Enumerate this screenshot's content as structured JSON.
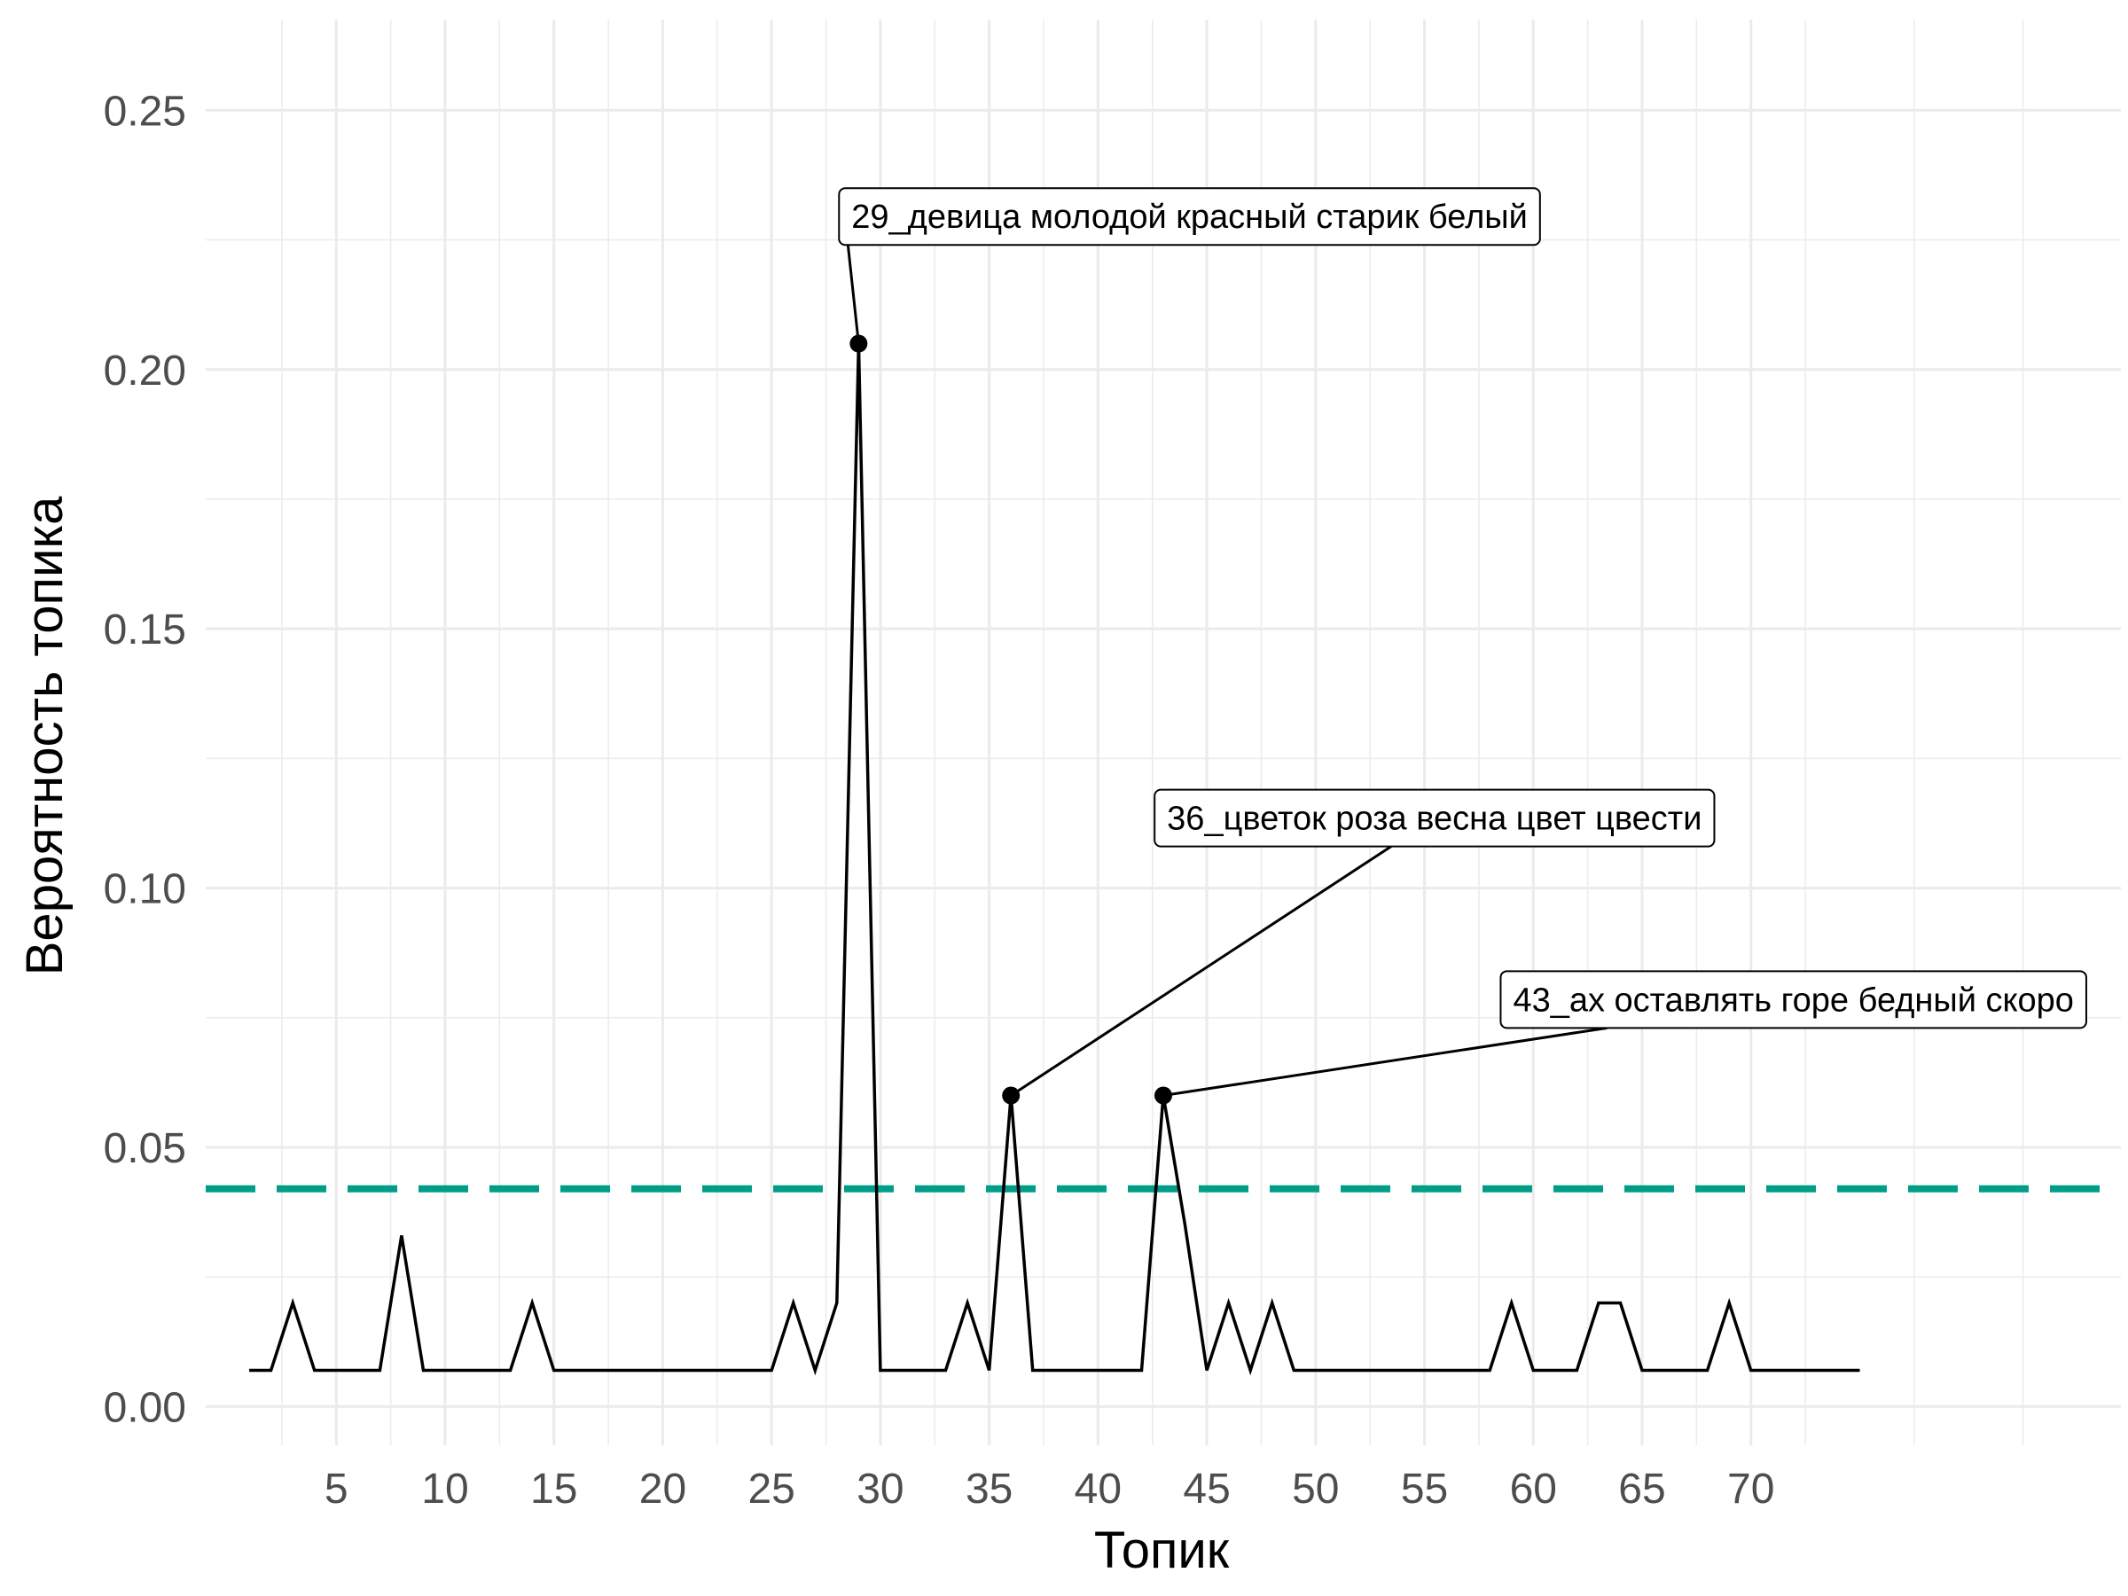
{
  "chart_data": {
    "type": "line",
    "xlabel": "Топик",
    "ylabel": "Вероятность топика",
    "xlim": [
      -1,
      87
    ],
    "ylim": [
      -0.00745,
      0.2675
    ],
    "x_ticks": [
      5,
      10,
      15,
      20,
      25,
      30,
      35,
      40,
      45,
      50,
      55,
      60,
      65,
      70
    ],
    "x_tick_labels": [
      "5",
      "10",
      "15",
      "20",
      "25",
      "30",
      "35",
      "40",
      "45",
      "50",
      "55",
      "60",
      "65",
      "70"
    ],
    "x_minor_ticks": [
      2.5,
      7.5,
      12.5,
      17.5,
      22.5,
      27.5,
      32.5,
      37.5,
      42.5,
      47.5,
      52.5,
      57.5,
      62.5,
      67.5,
      72.5,
      77.5,
      82.5
    ],
    "y_ticks": [
      0,
      0.05,
      0.1,
      0.15,
      0.2,
      0.25
    ],
    "y_tick_labels": [
      "0.00",
      "0.05",
      "0.10",
      "0.15",
      "0.20",
      "0.25"
    ],
    "y_minor_ticks": [
      0.025,
      0.075,
      0.125,
      0.175,
      0.225
    ],
    "grid": true,
    "line_color": "#000000",
    "grid_color": "#ebebeb",
    "series": [
      {
        "x": [
          1,
          2,
          3,
          4,
          5,
          6,
          7,
          8,
          9,
          10,
          11,
          12,
          13,
          14,
          15,
          16,
          17,
          18,
          19,
          20,
          21,
          22,
          23,
          24,
          25,
          26,
          27,
          28,
          29,
          30,
          31,
          32,
          33,
          34,
          35,
          36,
          37,
          38,
          39,
          40,
          41,
          42,
          43,
          44,
          45,
          46,
          47,
          48,
          49,
          50,
          51,
          52,
          53,
          54,
          55,
          56,
          57,
          58,
          59,
          60,
          61,
          62,
          63,
          64,
          65,
          66,
          67,
          68,
          69,
          70,
          71,
          72,
          73,
          74,
          75
        ],
        "values": [
          0.007,
          0.007,
          0.02,
          0.007,
          0.007,
          0.007,
          0.007,
          0.033,
          0.007,
          0.007,
          0.007,
          0.007,
          0.007,
          0.02,
          0.007,
          0.007,
          0.007,
          0.007,
          0.007,
          0.007,
          0.007,
          0.007,
          0.007,
          0.007,
          0.007,
          0.02,
          0.007,
          0.02,
          0.205,
          0.007,
          0.007,
          0.007,
          0.007,
          0.02,
          0.007,
          0.06,
          0.007,
          0.007,
          0.007,
          0.007,
          0.007,
          0.007,
          0.06,
          0.035,
          0.007,
          0.02,
          0.007,
          0.02,
          0.007,
          0.007,
          0.007,
          0.007,
          0.007,
          0.007,
          0.007,
          0.007,
          0.007,
          0.007,
          0.02,
          0.007,
          0.007,
          0.007,
          0.02,
          0.02,
          0.007,
          0.007,
          0.007,
          0.007,
          0.02,
          0.007,
          0.007,
          0.007,
          0.007,
          0.007,
          0.007
        ]
      }
    ],
    "threshold": {
      "value": 0.042,
      "color": "#009e87",
      "style": "dashed"
    },
    "annotations": [
      {
        "x": 29,
        "y": 0.205,
        "text": "29_девица молодой красный старик белый",
        "label_x": 28.1,
        "label_y": 0.2295
      },
      {
        "x": 36,
        "y": 0.06,
        "text": "36_цветок роза весна цвет цвести",
        "label_x": 42.6,
        "label_y": 0.1135
      },
      {
        "x": 43,
        "y": 0.06,
        "text": "43_ах оставлять горе бедный скоро",
        "label_x": 58.5,
        "label_y": 0.0785
      }
    ]
  }
}
